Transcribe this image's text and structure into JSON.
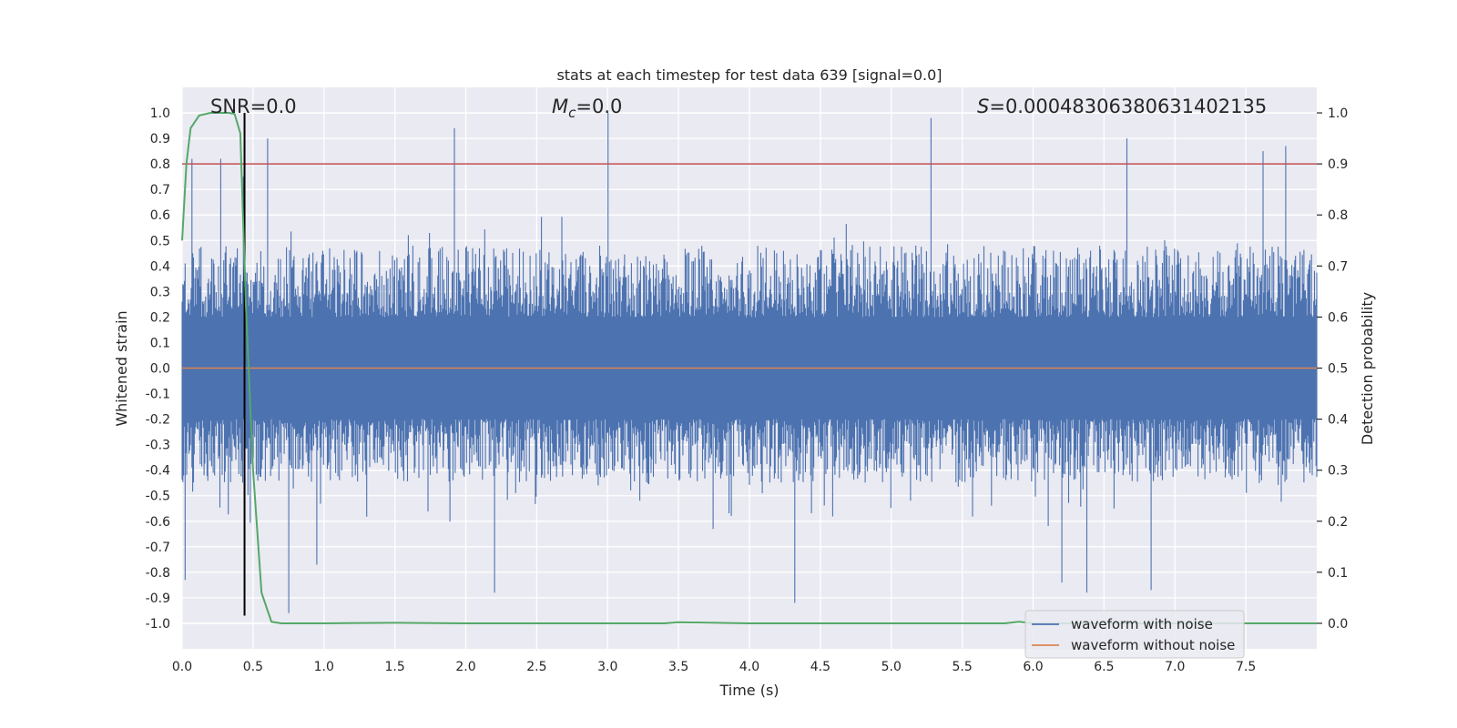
{
  "chart_data": {
    "type": "line",
    "title": "stats at each timestep for test data 639 [signal=0.0]",
    "xlabel": "Time (s)",
    "ylabel": "Whitened strain",
    "ylabel_right": "Detection probability",
    "xlim": [
      0.0,
      8.0
    ],
    "ylim": [
      -1.1,
      1.1
    ],
    "ylim_right": [
      -0.05,
      1.05
    ],
    "x_ticks": [
      "0.0",
      "0.5",
      "1.0",
      "1.5",
      "2.0",
      "2.5",
      "3.0",
      "3.5",
      "4.0",
      "4.5",
      "5.0",
      "5.5",
      "6.0",
      "6.5",
      "7.0",
      "7.5"
    ],
    "x_tick_values": [
      0.0,
      0.5,
      1.0,
      1.5,
      2.0,
      2.5,
      3.0,
      3.5,
      4.0,
      4.5,
      5.0,
      5.5,
      6.0,
      6.5,
      7.0,
      7.5
    ],
    "y_ticks": [
      "1.0",
      "0.9",
      "0.8",
      "0.7",
      "0.6",
      "0.5",
      "0.4",
      "0.3",
      "0.2",
      "0.1",
      "0.0",
      "-0.1",
      "-0.2",
      "-0.3",
      "-0.4",
      "-0.5",
      "-0.6",
      "-0.7",
      "-0.8",
      "-0.9",
      "-1.0"
    ],
    "y_tick_values": [
      1.0,
      0.9,
      0.8,
      0.7,
      0.6,
      0.5,
      0.4,
      0.3,
      0.2,
      0.1,
      0.0,
      -0.1,
      -0.2,
      -0.3,
      -0.4,
      -0.5,
      -0.6,
      -0.7,
      -0.8,
      -0.9,
      -1.0
    ],
    "y_right_ticks": [
      "1.0",
      "0.9",
      "0.8",
      "0.7",
      "0.6",
      "0.5",
      "0.4",
      "0.3",
      "0.2",
      "0.1",
      "0.0"
    ],
    "y_right_tick_values": [
      1.0,
      0.9,
      0.8,
      0.7,
      0.6,
      0.5,
      0.4,
      0.3,
      0.2,
      0.1,
      0.0
    ],
    "annotations": {
      "snr": "SNR=0.0",
      "mc_symbol": "M",
      "mc_sub": "c",
      "mc_value": "=0.0",
      "s_symbol": "S",
      "s_value": "=0.00048306380631402135"
    },
    "legend": {
      "position": "lower right",
      "entries": [
        "waveform with noise",
        "waveform without noise"
      ]
    },
    "colors": {
      "noise": "#4c72b0",
      "clean": "#dd8452",
      "probability": "#55a868",
      "threshold": "#c44e52",
      "marker": "#000000",
      "plot_bg": "#eaeaf2",
      "grid": "#ffffff"
    },
    "series": [
      {
        "name": "waveform with noise",
        "axis": "left",
        "description": "dense noise, typical envelope about -0.4 to 0.45",
        "x_range": [
          0.0,
          8.0
        ],
        "notable_peaks": [
          {
            "x": 0.07,
            "y": 0.82
          },
          {
            "x": 0.27,
            "y": 0.82
          },
          {
            "x": 0.43,
            "y": 0.75
          },
          {
            "x": 0.6,
            "y": 0.9
          },
          {
            "x": 1.92,
            "y": 0.94
          },
          {
            "x": 3.0,
            "y": 1.0
          },
          {
            "x": 5.28,
            "y": 0.98
          },
          {
            "x": 6.66,
            "y": 0.9
          },
          {
            "x": 7.62,
            "y": 0.85
          },
          {
            "x": 7.78,
            "y": 0.87
          },
          {
            "x": 0.02,
            "y": -0.83
          },
          {
            "x": 0.75,
            "y": -0.96
          },
          {
            "x": 0.95,
            "y": -0.77
          },
          {
            "x": 2.2,
            "y": -0.88
          },
          {
            "x": 4.32,
            "y": -0.92
          },
          {
            "x": 6.2,
            "y": -0.84
          },
          {
            "x": 6.38,
            "y": -0.88
          },
          {
            "x": 6.83,
            "y": -0.87
          }
        ]
      },
      {
        "name": "waveform without noise",
        "axis": "left",
        "x": [
          0.0,
          8.0
        ],
        "y": [
          0.0,
          0.0
        ]
      },
      {
        "name": "detection probability",
        "axis": "right",
        "x": [
          0.0,
          0.03,
          0.06,
          0.12,
          0.2,
          0.27,
          0.33,
          0.37,
          0.41,
          0.45,
          0.5,
          0.56,
          0.63,
          0.7,
          1.0,
          1.5,
          2.0,
          3.0,
          3.4,
          3.5,
          4.0,
          5.0,
          5.8,
          5.9,
          6.0,
          7.0,
          8.0
        ],
        "y": [
          0.75,
          0.9,
          0.97,
          0.995,
          1.0,
          1.0,
          1.0,
          0.998,
          0.96,
          0.62,
          0.3,
          0.06,
          0.003,
          0.0,
          0.0,
          0.001,
          0.0,
          0.0,
          0.0,
          0.002,
          0.0,
          0.0,
          0.0,
          0.003,
          0.0,
          0.0,
          0.0
        ]
      },
      {
        "name": "threshold",
        "axis": "right",
        "x": [
          0.0,
          8.0
        ],
        "y": [
          0.9,
          0.9
        ]
      },
      {
        "name": "marker",
        "axis": "left",
        "x": [
          0.44,
          0.44
        ],
        "y": [
          -0.97,
          1.0
        ]
      }
    ]
  }
}
